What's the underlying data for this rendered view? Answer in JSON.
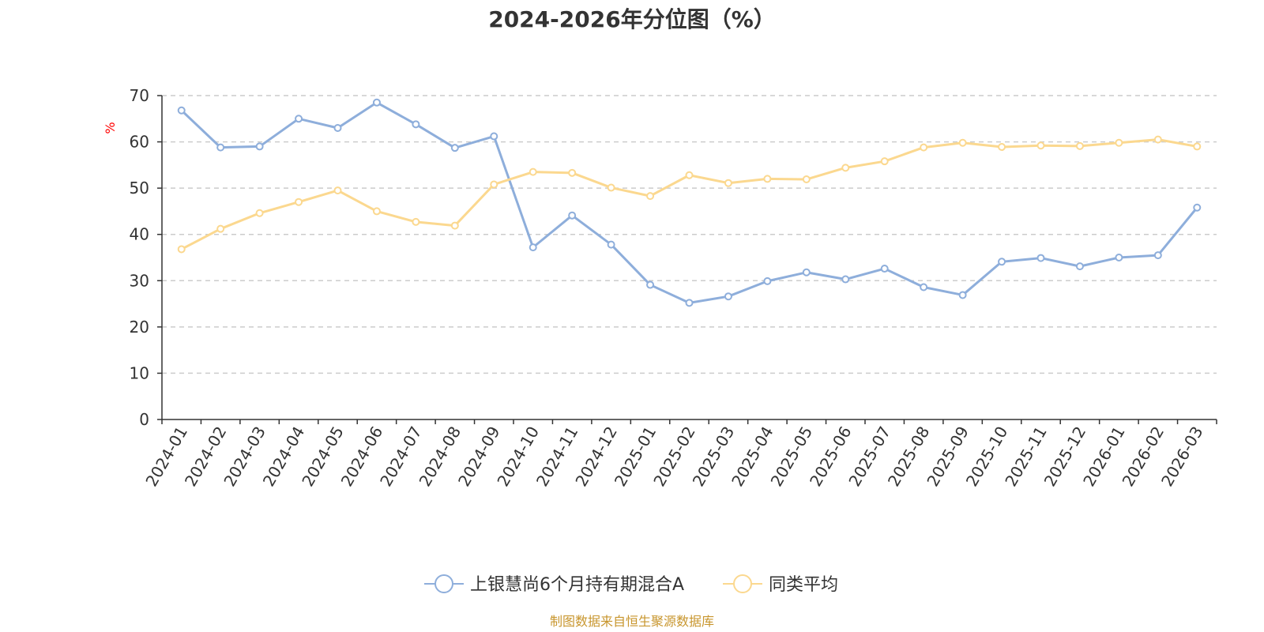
{
  "chart_data": {
    "type": "line",
    "title": "2024-2026年分位图（%）",
    "ylabel": "%",
    "xlabel": "",
    "ylim": [
      0,
      70
    ],
    "yticks": [
      0,
      10,
      20,
      30,
      40,
      50,
      60,
      70
    ],
    "grid": true,
    "legend_position": "bottom",
    "categories": [
      "2024-01",
      "2024-02",
      "2024-03",
      "2024-04",
      "2024-05",
      "2024-06",
      "2024-07",
      "2024-08",
      "2024-09",
      "2024-10",
      "2024-11",
      "2024-12",
      "2025-01",
      "2025-02",
      "2025-03",
      "2025-04",
      "2025-05",
      "2025-06",
      "2025-07",
      "2025-08",
      "2025-09",
      "2025-10",
      "2025-11",
      "2025-12",
      "2026-01",
      "2026-02",
      "2026-03"
    ],
    "series": [
      {
        "name": "上银慧尚6个月持有期混合A",
        "color": "#8eaedb",
        "values": [
          66.8,
          58.8,
          59.0,
          65.0,
          63.0,
          68.5,
          63.8,
          58.7,
          61.2,
          37.2,
          44.1,
          37.8,
          29.1,
          25.2,
          26.6,
          29.9,
          31.8,
          30.3,
          32.6,
          28.6,
          26.9,
          34.1,
          34.9,
          33.1,
          35.0,
          35.5,
          45.8
        ]
      },
      {
        "name": "同类平均",
        "color": "#fbd88f",
        "values": [
          36.8,
          41.2,
          44.6,
          47.0,
          49.5,
          45.0,
          42.7,
          41.9,
          50.8,
          53.5,
          53.3,
          50.1,
          48.3,
          52.8,
          51.1,
          52.0,
          51.9,
          54.4,
          55.8,
          58.8,
          59.8,
          58.9,
          59.2,
          59.1,
          59.8,
          60.5,
          59.0
        ]
      }
    ]
  },
  "source_text": "制图数据来自恒生聚源数据库"
}
